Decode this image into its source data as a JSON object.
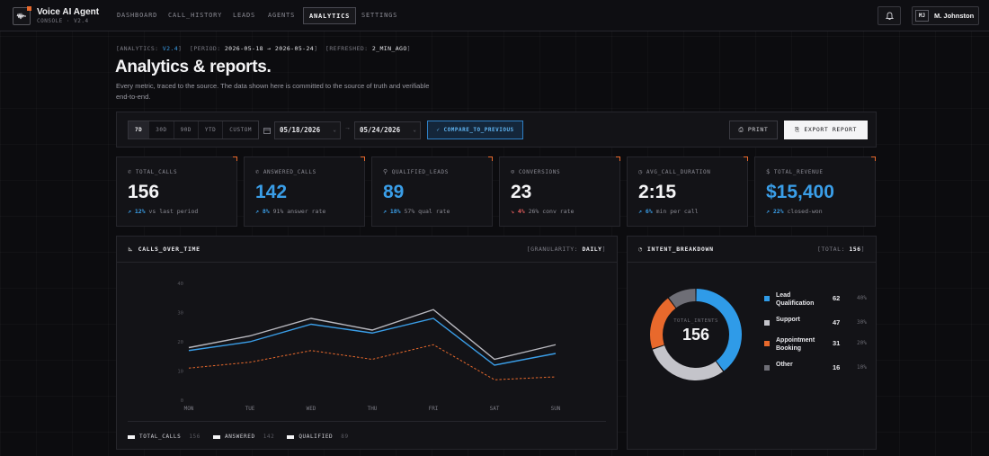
{
  "brand": {
    "title": "Voice AI Agent",
    "subtitle": "CONSOLE · V2.4"
  },
  "nav": {
    "items": [
      {
        "label": "DASHBOARD"
      },
      {
        "label": "CALL_HISTORY"
      },
      {
        "label": "LEADS"
      },
      {
        "label": "AGENTS"
      },
      {
        "label": "ANALYTICS",
        "active": true
      },
      {
        "label": "SETTINGS"
      }
    ],
    "user": {
      "initials": "MJ",
      "name": "M. Johnston"
    }
  },
  "header": {
    "meta": {
      "analytics_key": "[ANALYTICS:",
      "analytics_val": "V2.4",
      "analytics_close": "]",
      "period_key": "[PERIOD:",
      "period_val": "2026-05-18 → 2026-05-24",
      "period_close": "]",
      "refreshed_key": "[REFRESHED:",
      "refreshed_val": "2_MIN_AGO",
      "refreshed_close": "]"
    },
    "title": "Analytics & reports.",
    "description": "Every metric, traced to the source. The data shown here is committed to the source of truth and verifiable end-to-end."
  },
  "toolbar": {
    "ranges": [
      "7D",
      "30D",
      "90D",
      "YTD",
      "CUSTOM"
    ],
    "active_range": "7D",
    "date_from": "05/18/2026",
    "date_to": "05/24/2026",
    "range_sep": "→",
    "compare_label": "✓ COMPARE_TO_PREVIOUS",
    "print_label": "⎙ PRINT",
    "export_label": "⎘ EXPORT REPORT"
  },
  "kpis": [
    {
      "icon": "phone-icon",
      "glyph": "✆",
      "label": "TOTAL_CALLS",
      "value": "156",
      "blue": false,
      "dir": "up",
      "delta": "↗ 12%",
      "note": "vs last period"
    },
    {
      "icon": "phone-incoming-icon",
      "glyph": "✆",
      "label": "ANSWERED_CALLS",
      "value": "142",
      "blue": true,
      "dir": "up",
      "delta": "↗ 8%",
      "note": "91% answer rate"
    },
    {
      "icon": "user-plus-icon",
      "glyph": "⚲",
      "label": "QUALIFIED_LEADS",
      "value": "89",
      "blue": true,
      "dir": "up",
      "delta": "↗ 18%",
      "note": "57% qual rate"
    },
    {
      "icon": "check-circle-icon",
      "glyph": "⊙",
      "label": "CONVERSIONS",
      "value": "23",
      "blue": false,
      "dir": "down",
      "delta": "↘ 4%",
      "note": "26% conv rate"
    },
    {
      "icon": "clock-icon",
      "glyph": "◷",
      "label": "AVG_CALL_DURATION",
      "value": "2:15",
      "blue": false,
      "dir": "up",
      "delta": "↗ 6%",
      "note": "min per call"
    },
    {
      "icon": "dollar-icon",
      "glyph": "$",
      "label": "TOTAL_REVENUE",
      "value": "$15,400",
      "blue": true,
      "dir": "up",
      "delta": "↗ 22%",
      "note": "closed-won"
    }
  ],
  "calls_panel": {
    "title": "CALLS_OVER_TIME",
    "meta_key": "[GRANULARITY:",
    "meta_val": "DAILY",
    "meta_close": "]"
  },
  "intent_panel": {
    "title": "INTENT_BREAKDOWN",
    "meta_key": "[TOTAL:",
    "meta_val": "156",
    "meta_close": "]",
    "center_label": "TOTAL_INTENTS",
    "center_value": "156"
  },
  "colors": {
    "total": "#b9b9c0",
    "answered": "#3a9ee8",
    "qualified": "#e8692c",
    "lead": "#2f9be8",
    "support": "#c4c4ca",
    "appointment": "#e8692c",
    "other": "#6e6e76"
  },
  "chart_data": [
    {
      "type": "line",
      "x": [
        "MON",
        "TUE",
        "WED",
        "THU",
        "FRI",
        "SAT",
        "SUN"
      ],
      "ylim": [
        0,
        40
      ],
      "yticks": [
        0,
        10,
        20,
        30,
        40
      ],
      "series": [
        {
          "name": "TOTAL_CALLS",
          "total": "156",
          "values": [
            18,
            22,
            28,
            24,
            31,
            14,
            19
          ]
        },
        {
          "name": "ANSWERED",
          "total": "142",
          "values": [
            17,
            20,
            26,
            23,
            28,
            12,
            16
          ]
        },
        {
          "name": "QUALIFIED",
          "total": "89",
          "values": [
            11,
            13,
            17,
            14,
            19,
            7,
            8
          ]
        }
      ]
    },
    {
      "type": "pie",
      "slices": [
        {
          "label": "Lead Qualification",
          "value": 62,
          "pct": "40%"
        },
        {
          "label": "Support",
          "value": 47,
          "pct": "30%"
        },
        {
          "label": "Appointment Booking",
          "value": 31,
          "pct": "20%"
        },
        {
          "label": "Other",
          "value": 16,
          "pct": "10%"
        }
      ]
    }
  ]
}
